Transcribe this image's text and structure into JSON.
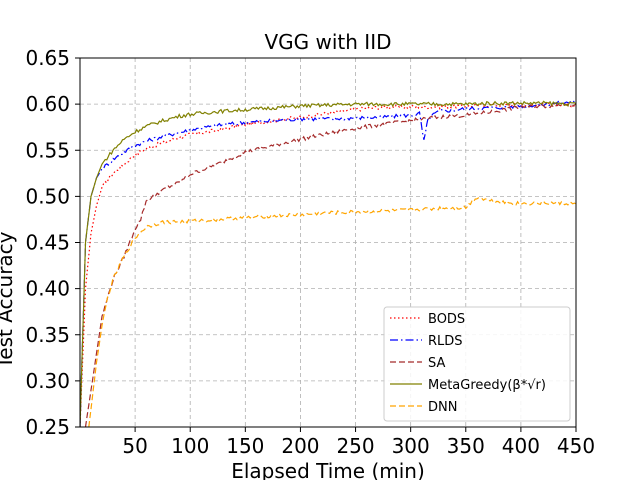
{
  "chart_data": {
    "type": "line",
    "title": "VGG with IID",
    "xlabel": "Elapsed Time (min)",
    "ylabel": "Test Accuracy",
    "xlim": [
      0,
      450
    ],
    "ylim": [
      0.25,
      0.65
    ],
    "xticks": [
      50,
      100,
      150,
      200,
      250,
      300,
      350,
      400,
      450
    ],
    "yticks": [
      0.25,
      0.3,
      0.35,
      0.4,
      0.45,
      0.5,
      0.55,
      0.6,
      0.65
    ],
    "grid": true,
    "legend_position": "bottom-right",
    "series": [
      {
        "name": "BODS",
        "color": "#ff0000",
        "dash": "dotted",
        "x": [
          0,
          5,
          10,
          15,
          20,
          30,
          40,
          50,
          60,
          75,
          90,
          100,
          125,
          150,
          175,
          200,
          225,
          250,
          275,
          300,
          325,
          350,
          375,
          400,
          425,
          450
        ],
        "y": [
          0.25,
          0.4,
          0.46,
          0.49,
          0.51,
          0.525,
          0.535,
          0.545,
          0.552,
          0.558,
          0.564,
          0.567,
          0.572,
          0.578,
          0.582,
          0.586,
          0.59,
          0.594,
          0.597,
          0.597,
          0.597,
          0.598,
          0.599,
          0.599,
          0.6,
          0.599
        ]
      },
      {
        "name": "RLDS",
        "color": "#0000ff",
        "dash": "dashdot",
        "x": [
          0,
          5,
          10,
          15,
          20,
          30,
          40,
          50,
          60,
          75,
          90,
          100,
          125,
          150,
          175,
          200,
          225,
          250,
          275,
          300,
          308,
          312,
          316,
          325,
          350,
          375,
          400,
          425,
          450
        ],
        "y": [
          0.25,
          0.45,
          0.5,
          0.52,
          0.53,
          0.54,
          0.548,
          0.555,
          0.56,
          0.565,
          0.569,
          0.572,
          0.577,
          0.58,
          0.582,
          0.584,
          0.584,
          0.585,
          0.586,
          0.588,
          0.59,
          0.56,
          0.585,
          0.592,
          0.595,
          0.596,
          0.598,
          0.6,
          0.603
        ]
      },
      {
        "name": "SA",
        "color": "#a52a2a",
        "dash": "dashed",
        "x": [
          5,
          10,
          15,
          20,
          30,
          40,
          50,
          55,
          60,
          70,
          80,
          90,
          100,
          125,
          150,
          175,
          200,
          225,
          250,
          275,
          300,
          325,
          350,
          375,
          400,
          425,
          450
        ],
        "y": [
          0.25,
          0.29,
          0.33,
          0.37,
          0.41,
          0.435,
          0.465,
          0.475,
          0.495,
          0.503,
          0.51,
          0.515,
          0.524,
          0.535,
          0.548,
          0.555,
          0.562,
          0.568,
          0.574,
          0.578,
          0.582,
          0.586,
          0.588,
          0.592,
          0.597,
          0.598,
          0.6
        ]
      },
      {
        "name": "MetaGreedy(β*√r)",
        "color": "#808000",
        "dash": "solid",
        "x": [
          0,
          5,
          10,
          15,
          20,
          30,
          40,
          50,
          60,
          75,
          90,
          100,
          125,
          150,
          175,
          200,
          225,
          250,
          275,
          300,
          325,
          350,
          375,
          400,
          425,
          450
        ],
        "y": [
          0.25,
          0.45,
          0.5,
          0.52,
          0.535,
          0.55,
          0.562,
          0.57,
          0.576,
          0.582,
          0.587,
          0.589,
          0.592,
          0.594,
          0.596,
          0.598,
          0.599,
          0.6,
          0.6,
          0.6,
          0.6,
          0.6,
          0.601,
          0.601,
          0.601,
          0.6
        ]
      },
      {
        "name": "DNN",
        "color": "#ffa500",
        "dash": "dashed",
        "x": [
          8,
          12,
          15,
          20,
          25,
          30,
          40,
          50,
          60,
          75,
          100,
          125,
          150,
          175,
          200,
          225,
          250,
          275,
          300,
          325,
          350,
          360,
          375,
          400,
          425,
          450
        ],
        "y": [
          0.25,
          0.29,
          0.32,
          0.36,
          0.39,
          0.41,
          0.435,
          0.455,
          0.467,
          0.472,
          0.473,
          0.475,
          0.477,
          0.479,
          0.48,
          0.482,
          0.483,
          0.484,
          0.485,
          0.487,
          0.488,
          0.499,
          0.495,
          0.492,
          0.493,
          0.492
        ]
      }
    ]
  }
}
